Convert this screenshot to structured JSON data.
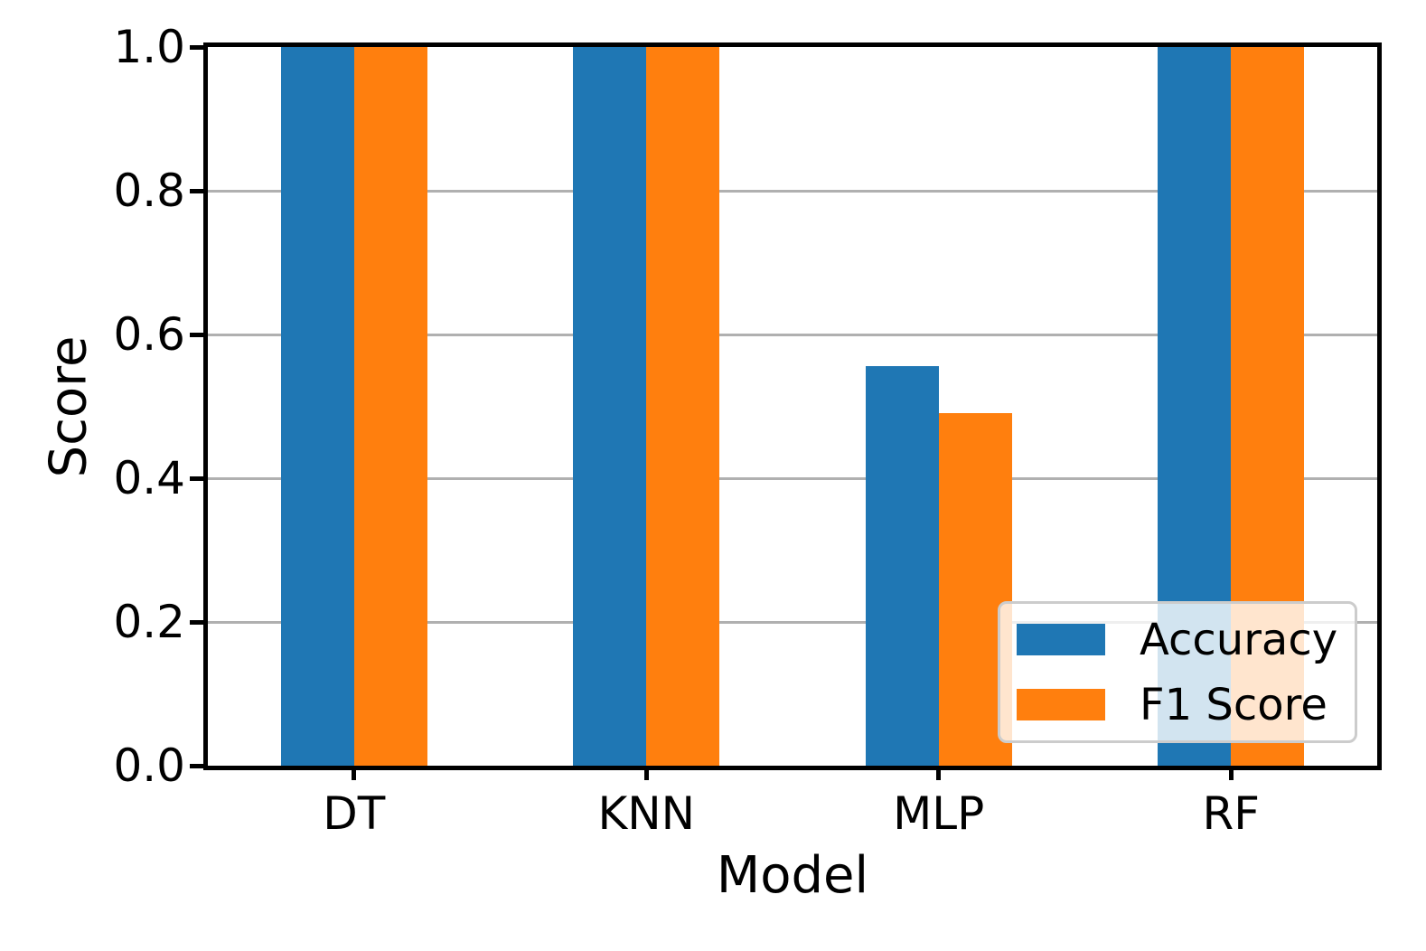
{
  "chart_data": {
    "type": "bar",
    "title": "",
    "xlabel": "Model",
    "ylabel": "Score",
    "categories": [
      "DT",
      "KNN",
      "MLP",
      "RF"
    ],
    "series": [
      {
        "name": "Accuracy",
        "color": "#1f77b4",
        "values": [
          1.0,
          1.0,
          0.556,
          1.0
        ]
      },
      {
        "name": "F1 Score",
        "color": "#ff7f0e",
        "values": [
          1.0,
          1.0,
          0.491,
          1.0
        ]
      }
    ],
    "ylim": [
      0.0,
      1.0
    ],
    "yticks": [
      "0.0",
      "0.2",
      "0.4",
      "0.6",
      "0.8",
      "1.0"
    ],
    "grid": true,
    "grid_color": "#b0b0b0",
    "spine_color": "#000000",
    "background": "#ffffff",
    "legend_position": "lower right",
    "legend_border_color": "#cccccc"
  }
}
